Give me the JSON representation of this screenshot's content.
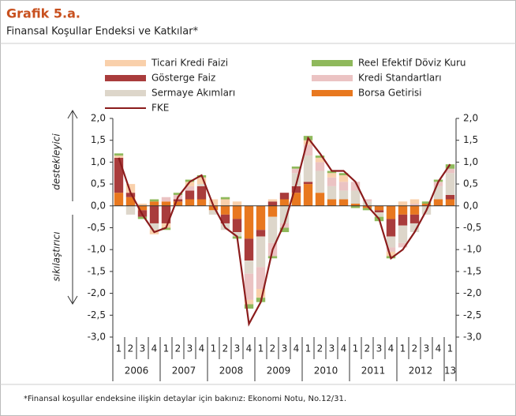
{
  "header": {
    "title": "Grafik 5.a.",
    "subtitle": "Finansal Koşullar Endeksi ve Katkılar*"
  },
  "footnote": "*Finansal koşullar endeksine ilişkin detaylar için bakınız: Ekonomi Notu, No.12/31.",
  "chart_data": {
    "type": "bar",
    "stacked": true,
    "annotations": [
      "destekleyici",
      "sıkılaştırıcı"
    ],
    "categories": [
      "1",
      "2",
      "3",
      "4",
      "1",
      "2",
      "3",
      "4",
      "1",
      "2",
      "3",
      "4",
      "1",
      "2",
      "3",
      "4",
      "1",
      "2",
      "3",
      "4",
      "1",
      "2",
      "3",
      "4",
      "1",
      "2",
      "3",
      "4",
      "1"
    ],
    "x_groups": [
      "2006",
      "2007",
      "2008",
      "2009",
      "2010",
      "2011",
      "2012",
      "13"
    ],
    "ylim": [
      -3,
      2
    ],
    "yticks": [
      {
        "value": -3,
        "label": "-3,0"
      },
      {
        "value": -2.5,
        "label": "-2,5"
      },
      {
        "value": -2,
        "label": "-2,0"
      },
      {
        "value": -1.5,
        "label": "-1,5"
      },
      {
        "value": -1,
        "label": "-1,0"
      },
      {
        "value": -0.5,
        "label": "-0,5"
      },
      {
        "value": 0,
        "label": "0,0"
      },
      {
        "value": 0.5,
        "label": "0,5"
      },
      {
        "value": 1,
        "label": "1,0"
      },
      {
        "value": 1.5,
        "label": "1,5"
      },
      {
        "value": 2,
        "label": "2,0"
      }
    ],
    "series": [
      {
        "name": "Ticari Kredi Faizi",
        "color": "#f9d0ab",
        "values": [
          0.05,
          0.2,
          0.05,
          -0.1,
          -0.1,
          0,
          0.1,
          0.15,
          0.15,
          0.15,
          0.1,
          -0.1,
          -0.2,
          0.05,
          0,
          0,
          0.1,
          0.1,
          0.1,
          0.15,
          0,
          0,
          0,
          -0.1,
          0.1,
          0.1,
          0,
          0,
          0
        ]
      },
      {
        "name": "Reel Efektif Döviz Kuru",
        "color": "#8fb95c",
        "values": [
          0.05,
          0,
          -0.05,
          0.05,
          -0.05,
          0.05,
          0.05,
          0.05,
          0,
          0.05,
          -0.05,
          -0.1,
          -0.1,
          -0.05,
          -0.1,
          0.05,
          0.1,
          0.05,
          0.05,
          0.05,
          -0.05,
          -0.05,
          -0.1,
          -0.05,
          0,
          0,
          0.05,
          0.05,
          0.1
        ]
      },
      {
        "name": "Gösterge Faiz",
        "color": "#a93c3c",
        "values": [
          0.8,
          0.1,
          -0.15,
          -0.4,
          -0.4,
          0.05,
          0.2,
          0.3,
          0,
          -0.2,
          -0.3,
          -0.5,
          -0.15,
          0.1,
          0.15,
          0.15,
          0.05,
          0,
          0,
          0,
          0,
          0,
          -0.05,
          -0.4,
          -0.25,
          -0.2,
          0,
          0,
          0.1
        ]
      },
      {
        "name": "Kredi Standartları",
        "color": "#ebc3c3",
        "values": [
          0,
          0,
          0,
          0,
          0.1,
          0.1,
          0.1,
          0,
          0,
          0,
          0,
          -0.6,
          -0.5,
          -0.3,
          -0.1,
          0.1,
          0.25,
          0.2,
          0.2,
          0.2,
          0.2,
          0.05,
          0,
          -0.1,
          -0.1,
          0.05,
          0,
          0.1,
          0.1
        ]
      },
      {
        "name": "Sermaye Akımları",
        "color": "#ddd6ca",
        "values": [
          0,
          -0.2,
          0,
          -0.15,
          0,
          0,
          0,
          0.05,
          -0.1,
          -0.15,
          -0.1,
          -0.3,
          -0.7,
          -0.6,
          -0.4,
          0.3,
          0.6,
          0.5,
          0.3,
          0.2,
          0.3,
          0.1,
          -0.1,
          -0.25,
          -0.4,
          -0.2,
          -0.2,
          0.3,
          0.5
        ]
      },
      {
        "name": "Borsa Getirisi",
        "color": "#e8781f",
        "values": [
          0.3,
          0.2,
          -0.1,
          0.1,
          0.1,
          0.1,
          0.15,
          0.15,
          -0.1,
          -0.2,
          -0.3,
          -0.75,
          -0.55,
          -0.25,
          0.15,
          0.3,
          0.5,
          0.3,
          0.15,
          0.15,
          0.05,
          -0.05,
          -0.1,
          -0.3,
          -0.2,
          -0.2,
          0.05,
          0.15,
          0.15
        ]
      },
      {
        "name": "FKE",
        "color": "#8b1c1c",
        "type": "line",
        "values": [
          1.1,
          0.3,
          -0.2,
          -0.6,
          -0.5,
          0.2,
          0.55,
          0.7,
          0,
          -0.5,
          -0.7,
          -2.7,
          -2.2,
          -1,
          -0.4,
          0.5,
          1.55,
          1.2,
          0.8,
          0.8,
          0.55,
          0,
          -0.3,
          -1.2,
          -1,
          -0.6,
          -0.1,
          0.55,
          0.95
        ]
      }
    ]
  }
}
